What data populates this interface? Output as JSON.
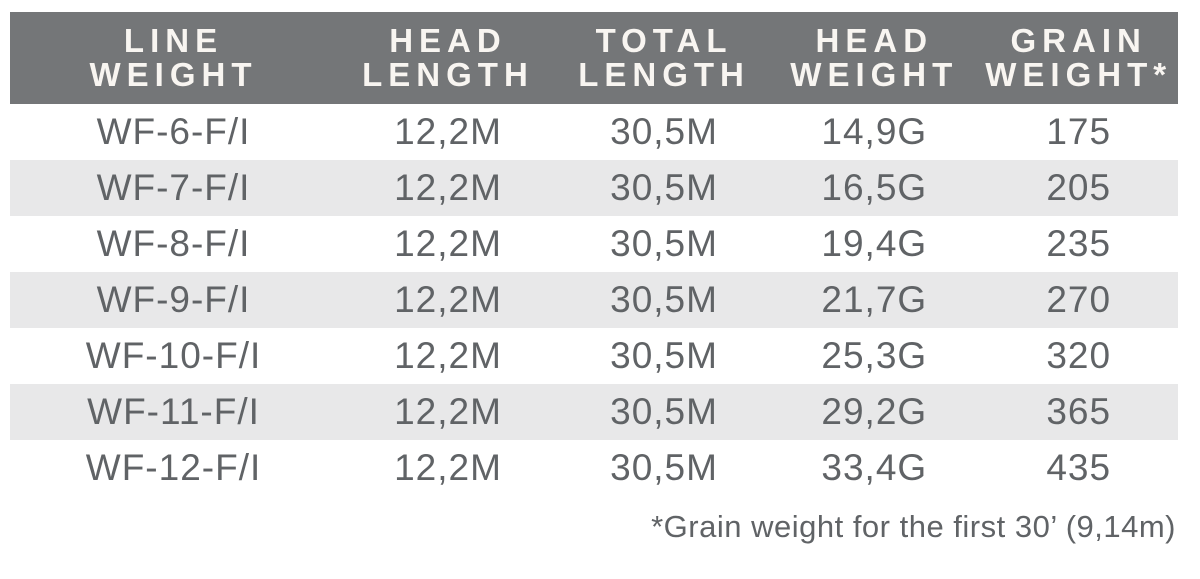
{
  "colors": {
    "header_bg": "#747678",
    "header_text": "#f8f5f1",
    "row_alt_bg": "#e8e8e9",
    "body_text": "#606366"
  },
  "table": {
    "columns": [
      {
        "line1": "LINE",
        "line2": "WEIGHT"
      },
      {
        "line1": "HEAD",
        "line2": "LENGTH"
      },
      {
        "line1": "TOTAL",
        "line2": "LENGTH"
      },
      {
        "line1": "HEAD",
        "line2": "WEIGHT"
      },
      {
        "line1": "GRAIN",
        "line2": "WEIGHT*"
      }
    ],
    "rows": [
      [
        "WF-6-F/I",
        "12,2M",
        "30,5M",
        "14,9G",
        "175"
      ],
      [
        "WF-7-F/I",
        "12,2M",
        "30,5M",
        "16,5G",
        "205"
      ],
      [
        "WF-8-F/I",
        "12,2M",
        "30,5M",
        "19,4G",
        "235"
      ],
      [
        "WF-9-F/I",
        "12,2M",
        "30,5M",
        "21,7G",
        "270"
      ],
      [
        "WF-10-F/I",
        "12,2M",
        "30,5M",
        "25,3G",
        "320"
      ],
      [
        "WF-11-F/I",
        "12,2M",
        "30,5M",
        "29,2G",
        "365"
      ],
      [
        "WF-12-F/I",
        "12,2M",
        "30,5M",
        "33,4G",
        "435"
      ]
    ],
    "footnote": "*Grain weight for the first 30’ (9,14m)"
  },
  "chart_data": {
    "type": "table",
    "title": "",
    "columns": [
      "LINE WEIGHT",
      "HEAD LENGTH",
      "TOTAL LENGTH",
      "HEAD WEIGHT",
      "GRAIN WEIGHT*"
    ],
    "rows": [
      [
        "WF-6-F/I",
        "12,2M",
        "30,5M",
        "14,9G",
        "175"
      ],
      [
        "WF-7-F/I",
        "12,2M",
        "30,5M",
        "16,5G",
        "205"
      ],
      [
        "WF-8-F/I",
        "12,2M",
        "30,5M",
        "19,4G",
        "235"
      ],
      [
        "WF-9-F/I",
        "12,2M",
        "30,5M",
        "21,7G",
        "270"
      ],
      [
        "WF-10-F/I",
        "12,2M",
        "30,5M",
        "25,3G",
        "320"
      ],
      [
        "WF-11-F/I",
        "12,2M",
        "30,5M",
        "29,2G",
        "365"
      ],
      [
        "WF-12-F/I",
        "12,2M",
        "30,5M",
        "33,4G",
        "435"
      ]
    ],
    "footnote": "*Grain weight for the first 30’ (9,14m)",
    "layout_hints": {
      "header_background": "#747678",
      "alternating_row_background": "#e8e8e9",
      "alternating_rows": "even rows shaded (WF-7, WF-9, WF-11)",
      "cell_alignment": "center",
      "footnote_alignment": "right"
    }
  }
}
